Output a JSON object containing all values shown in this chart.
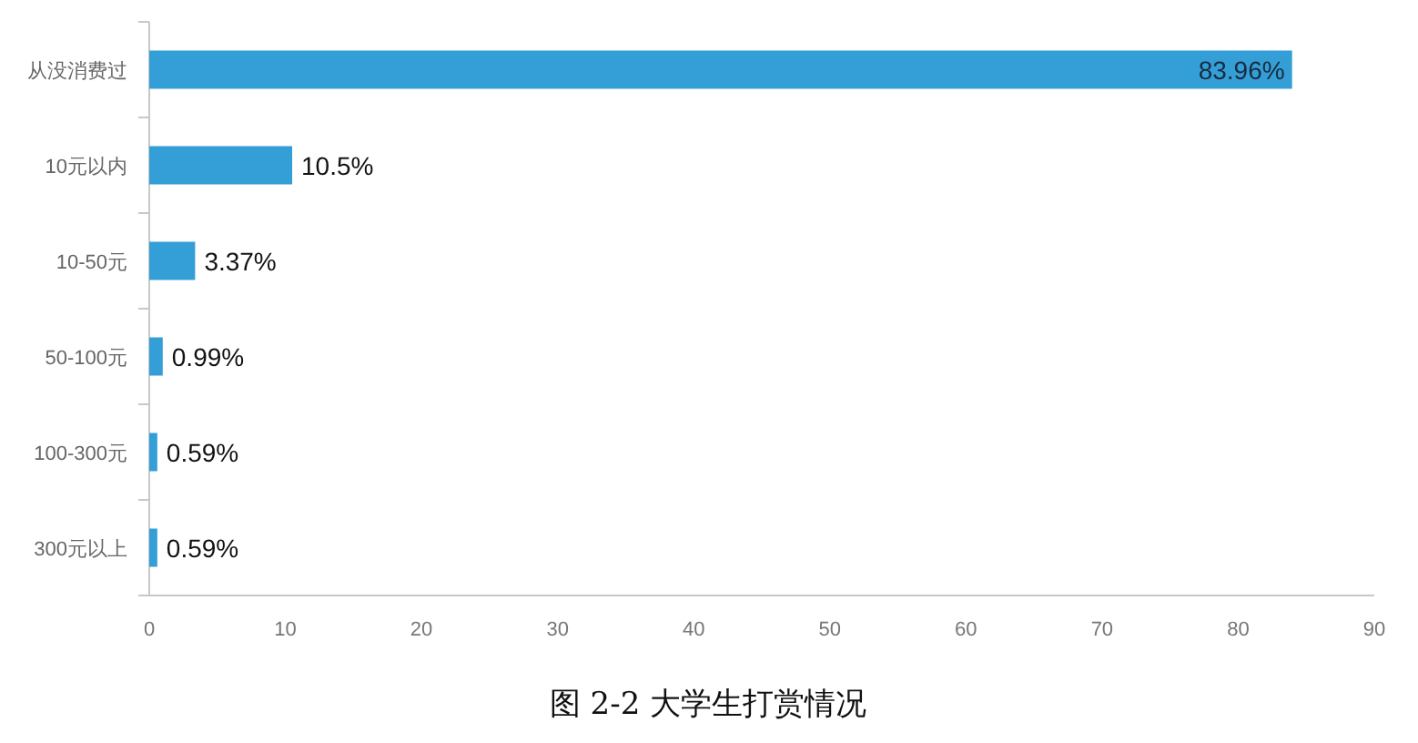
{
  "chart_data": {
    "type": "bar",
    "orientation": "horizontal",
    "title": "图 2-2 大学生打赏情况",
    "categories": [
      "从没消费过",
      "10元以内",
      "10-50元",
      "50-100元",
      "100-300元",
      "300元以上"
    ],
    "values": [
      83.96,
      10.5,
      3.37,
      0.99,
      0.59,
      0.59
    ],
    "value_labels": [
      "83.96%",
      "10.5%",
      "3.37%",
      "0.99%",
      "0.59%",
      "0.59%"
    ],
    "color": "#339fd6",
    "xlim": [
      0,
      90
    ],
    "xticks": [
      0,
      10,
      20,
      30,
      40,
      50,
      60,
      70,
      80,
      90
    ],
    "grid": false
  }
}
